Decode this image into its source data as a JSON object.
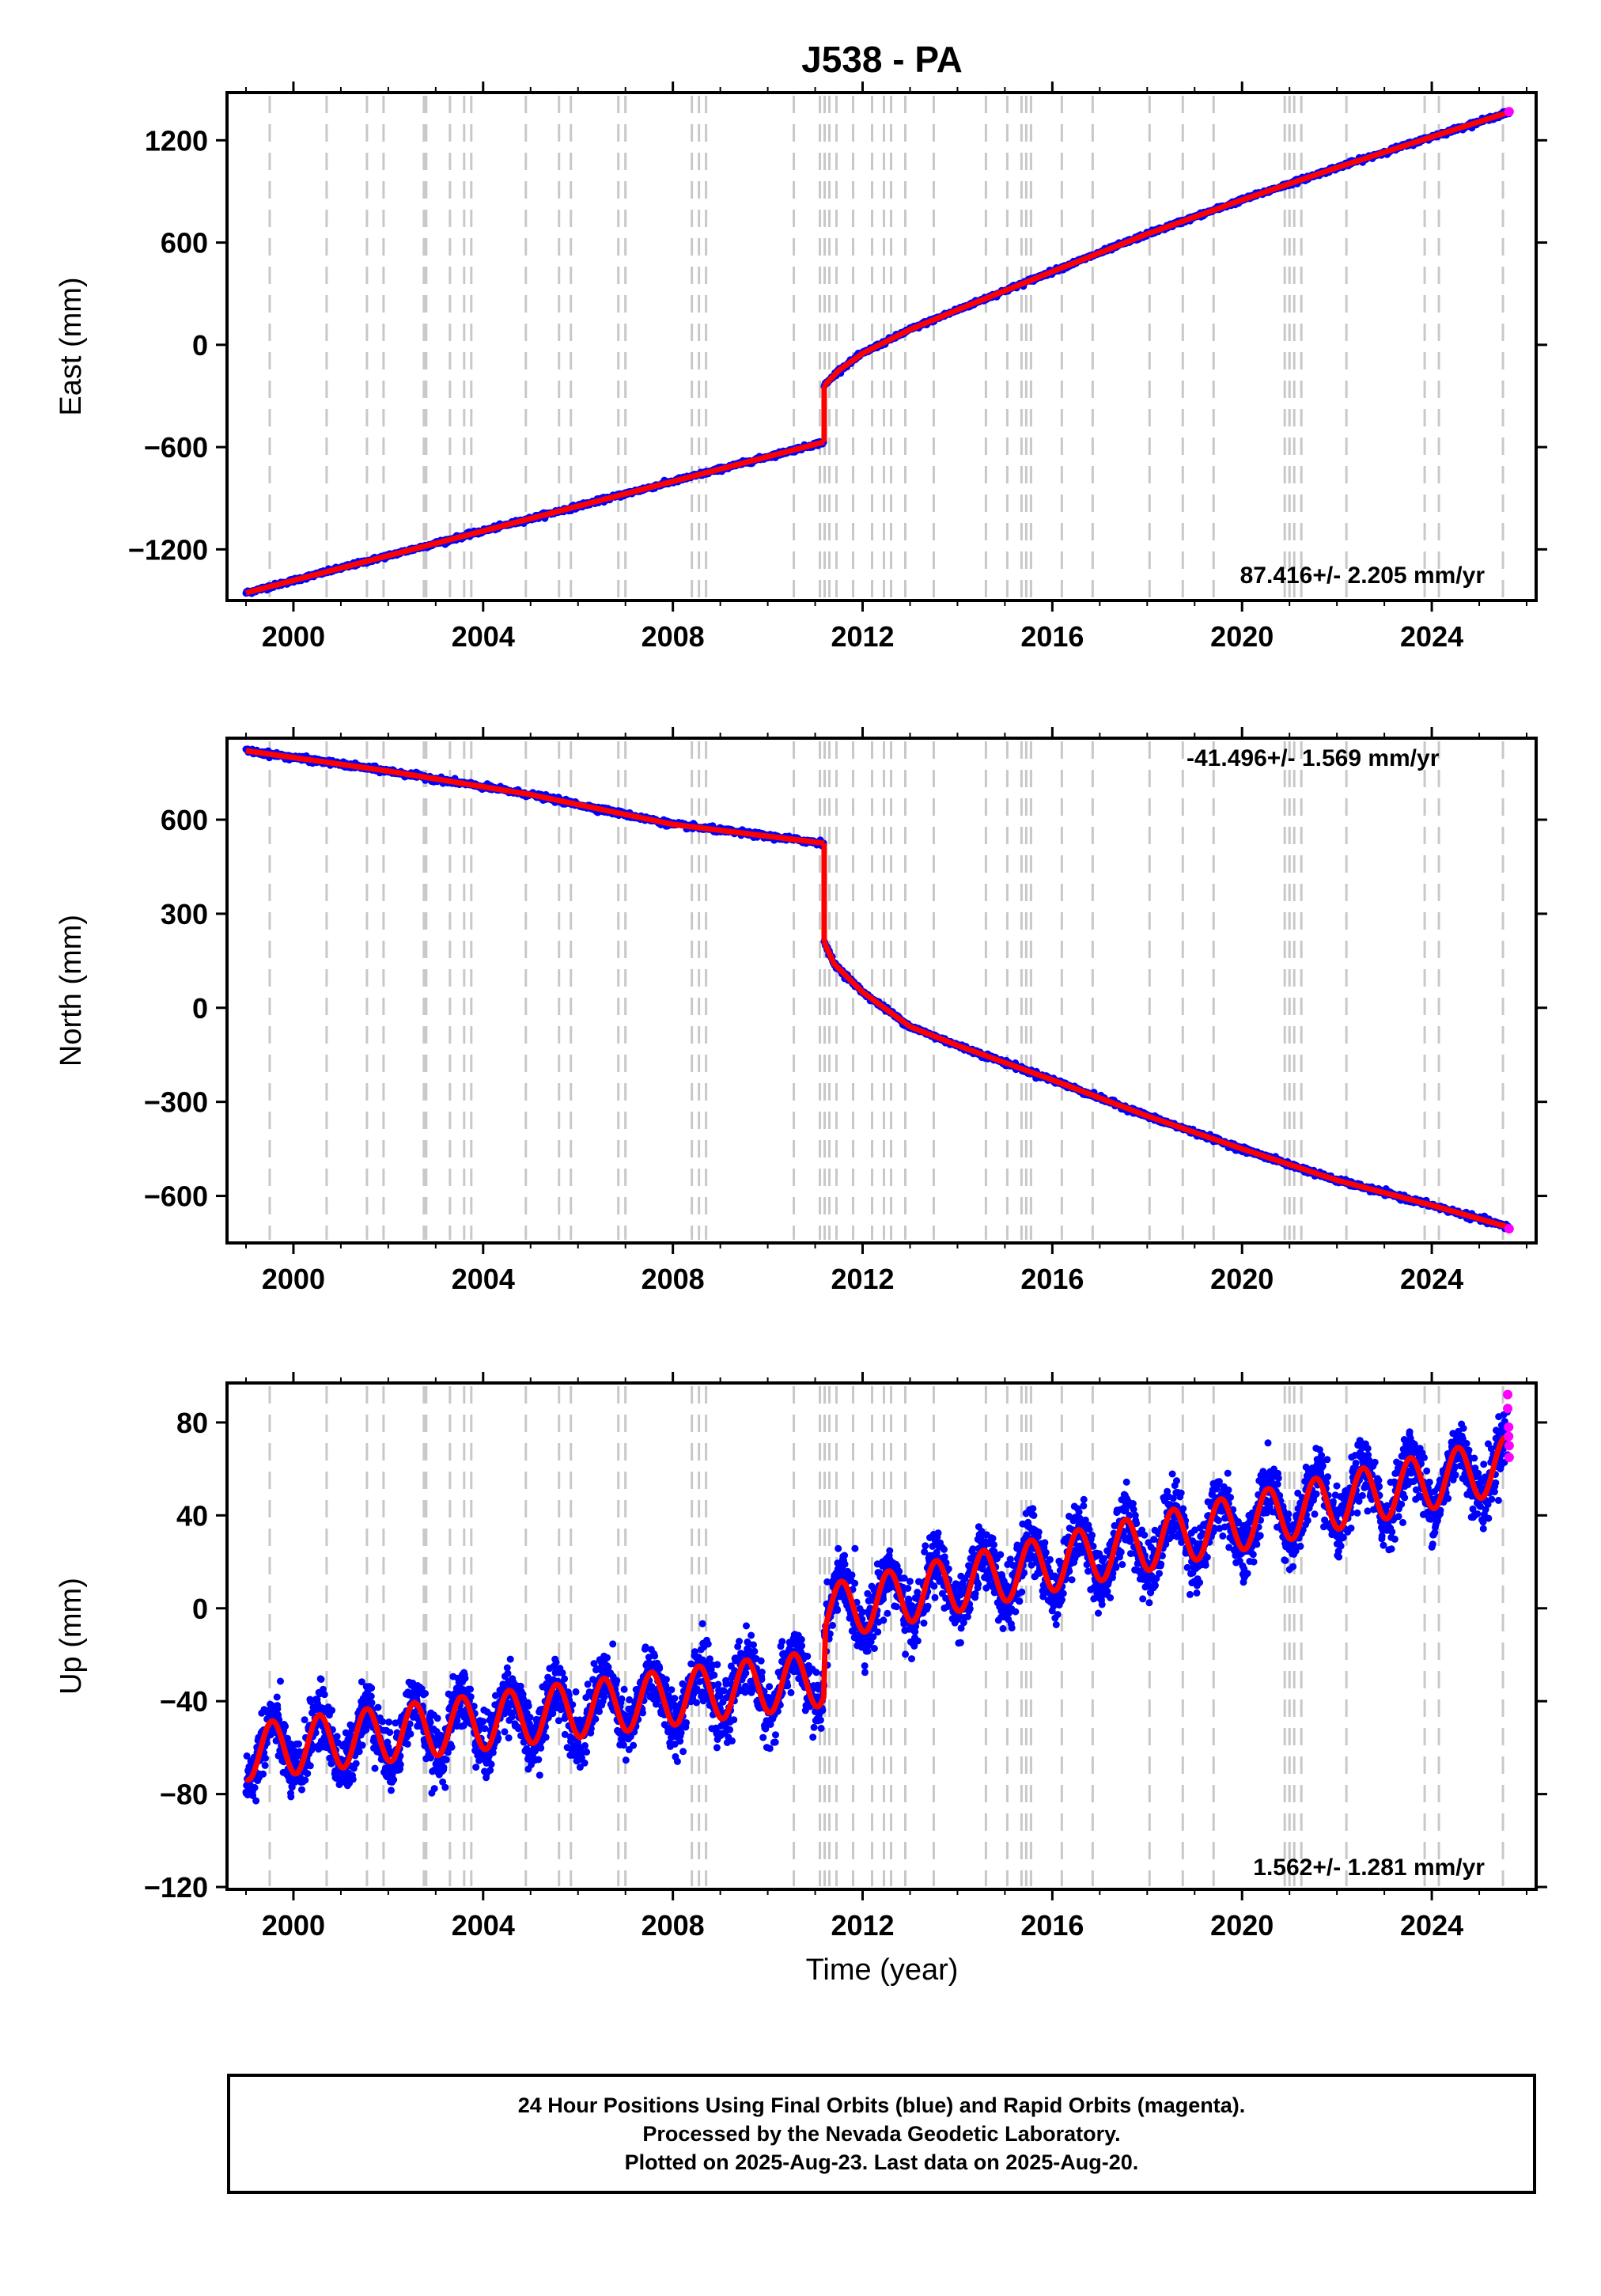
{
  "title": "J538 - PA",
  "x_label": "Time (year)",
  "x_ticks": [
    2000,
    2004,
    2008,
    2012,
    2016,
    2020,
    2024
  ],
  "caption": [
    "24 Hour Positions Using Final Orbits (blue) and Rapid Orbits (magenta).",
    "Processed by the Nevada Geodetic Laboratory.",
    "Plotted on 2025-Aug-23. Last data on 2025-Aug-20."
  ],
  "colors": {
    "final": "#0000ff",
    "rapid": "#ff00ff",
    "model": "#ff0000",
    "steps": "#c8c8c8"
  },
  "chart_data": [
    {
      "type": "scatter",
      "ylabel": "East (mm)",
      "xlim": [
        1998.6,
        2026.2
      ],
      "ylim": [
        -1500,
        1480
      ],
      "y_ticks": [
        -1200,
        -600,
        0,
        600,
        1200
      ],
      "rate_label": "87.416+/- 2.205 mm/yr",
      "series": [
        {
          "role": "model",
          "x": [
            1999.0,
            2011.19
          ],
          "y": [
            -1455,
            -570
          ]
        },
        {
          "role": "model",
          "x": [
            2011.19,
            2011.5,
            2012.0,
            2013.0,
            2014.0,
            2016.0,
            2018.0,
            2020.0,
            2022.0,
            2024.0,
            2025.63
          ],
          "y": [
            -240,
            -150,
            -50,
            90,
            205,
            430,
            650,
            850,
            1040,
            1220,
            1365
          ]
        },
        {
          "role": "rapid",
          "x": [
            2025.63
          ],
          "y": [
            1368
          ]
        }
      ]
    },
    {
      "type": "scatter",
      "ylabel": "North (mm)",
      "xlim": [
        1998.6,
        2026.2
      ],
      "ylim": [
        -750,
        860
      ],
      "y_ticks": [
        -600,
        -300,
        0,
        300,
        600
      ],
      "rate_label": "-41.496+/- 1.569 mm/yr",
      "series": [
        {
          "role": "model",
          "x": [
            1999.0,
            2002.0,
            2005.0,
            2008.0,
            2011.19
          ],
          "y": [
            820,
            755,
            680,
            585,
            525
          ]
        },
        {
          "role": "model",
          "x": [
            2011.19,
            2011.4,
            2012.0,
            2013.0,
            2014.0,
            2016.0,
            2018.0,
            2020.0,
            2022.0,
            2024.0,
            2025.63
          ],
          "y": [
            210,
            140,
            50,
            -60,
            -120,
            -230,
            -345,
            -450,
            -550,
            -630,
            -700
          ]
        },
        {
          "role": "rapid",
          "x": [
            2025.63
          ],
          "y": [
            -705
          ]
        }
      ]
    },
    {
      "type": "scatter",
      "ylabel": "Up (mm)",
      "xlim": [
        1998.6,
        2026.2
      ],
      "ylim": [
        -121,
        97
      ],
      "y_ticks": [
        -120,
        -80,
        -40,
        0,
        40,
        80
      ],
      "rate_label": "1.562+/- 1.281 mm/yr",
      "series": [
        {
          "role": "model-trend",
          "x": [
            1999.0,
            2011.19
          ],
          "y": [
            -62,
            -30
          ]
        },
        {
          "role": "model-trend",
          "x": [
            2011.19,
            2025.63
          ],
          "y": [
            -2,
            62
          ]
        },
        {
          "role": "seasonal-amplitude",
          "x": [
            1999.0
          ],
          "y": [
            12
          ]
        },
        {
          "role": "rapid",
          "x": [
            2025.6,
            2025.6,
            2025.62,
            2025.62,
            2025.63,
            2025.63
          ],
          "y": [
            92,
            86,
            78,
            74,
            70,
            65
          ]
        }
      ]
    }
  ],
  "step_years": [
    1999.5,
    2000.7,
    2001.55,
    2001.9,
    2002.75,
    2002.8,
    2003.3,
    2003.6,
    2003.75,
    2004.9,
    2005.6,
    2005.85,
    2006.85,
    2007.0,
    2008.4,
    2008.55,
    2008.7,
    2010.55,
    2011.1,
    2011.2,
    2011.3,
    2011.45,
    2011.8,
    2012.2,
    2012.45,
    2012.6,
    2012.9,
    2013.5,
    2014.6,
    2015.05,
    2015.35,
    2015.45,
    2015.55,
    2016.2,
    2016.85,
    2018.05,
    2018.75,
    2019.4,
    2020.9,
    2021.0,
    2021.1,
    2021.25,
    2022.2,
    2023.85,
    2024.15,
    2025.5
  ]
}
